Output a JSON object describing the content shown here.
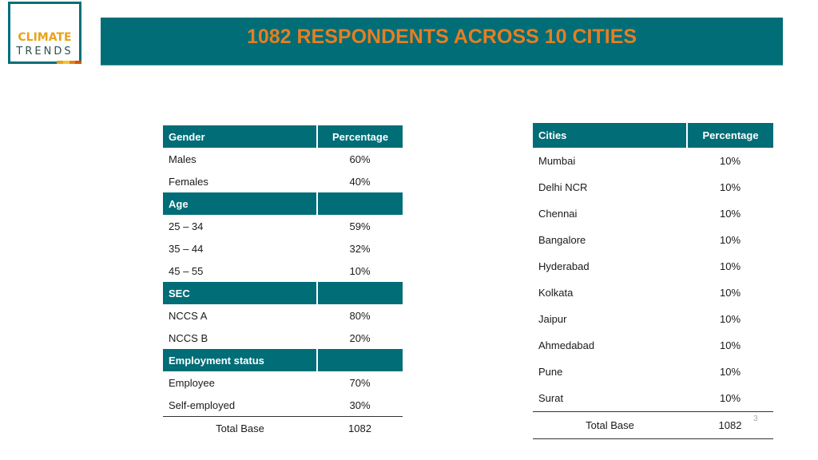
{
  "logo": {
    "line1": "CLIMATE",
    "line2": "TRENDS",
    "stripe_colors": [
      "#e8a317",
      "#f4c430",
      "#e67e22",
      "#d35400"
    ]
  },
  "header": {
    "title": "1082 RESPONDENTS ACROSS 10 CITIES",
    "bg_color": "#006d77",
    "title_color": "#e67e22"
  },
  "demographics_table": {
    "col1_header": "Gender",
    "col2_header": "Percentage",
    "gender_rows": [
      {
        "label": "Males",
        "value": "60%"
      },
      {
        "label": "Females",
        "value": "40%"
      }
    ],
    "age_header": "Age",
    "age_rows": [
      {
        "label": "25 – 34",
        "value": "59%"
      },
      {
        "label": "35 – 44",
        "value": "32%"
      },
      {
        "label": "45 – 55",
        "value": "10%"
      }
    ],
    "sec_header": "SEC",
    "sec_rows": [
      {
        "label": "NCCS A",
        "value": "80%"
      },
      {
        "label": "NCCS B",
        "value": "20%"
      }
    ],
    "employment_header": "Employment status",
    "employment_rows": [
      {
        "label": "Employee",
        "value": "70%"
      },
      {
        "label": "Self-employed",
        "value": "30%"
      }
    ],
    "total_label": "Total Base",
    "total_value": "1082"
  },
  "cities_table": {
    "col1_header": "Cities",
    "col2_header": "Percentage",
    "rows": [
      {
        "label": "Mumbai",
        "value": "10%"
      },
      {
        "label": "Delhi NCR",
        "value": "10%"
      },
      {
        "label": "Chennai",
        "value": "10%"
      },
      {
        "label": "Bangalore",
        "value": "10%"
      },
      {
        "label": "Hyderabad",
        "value": "10%"
      },
      {
        "label": "Kolkata",
        "value": "10%"
      },
      {
        "label": "Jaipur",
        "value": "10%"
      },
      {
        "label": "Ahmedabad",
        "value": "10%"
      },
      {
        "label": "Pune",
        "value": "10%"
      },
      {
        "label": "Surat",
        "value": "10%"
      }
    ],
    "total_label": "Total Base",
    "total_value": "1082"
  },
  "page_number": "3"
}
